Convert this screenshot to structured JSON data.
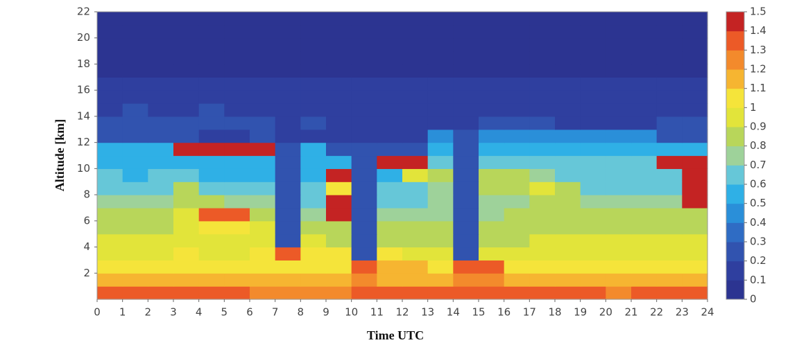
{
  "chart_data": {
    "type": "heatmap",
    "x_label": "Time UTC",
    "y_label": "Altitude [km]",
    "xlim": [
      0,
      24
    ],
    "ylim": [
      0,
      22
    ],
    "xticks": [
      0,
      1,
      2,
      3,
      4,
      5,
      6,
      7,
      8,
      9,
      10,
      11,
      12,
      13,
      14,
      15,
      16,
      17,
      18,
      19,
      20,
      21,
      22,
      23,
      24
    ],
    "yticks": [
      2,
      4,
      6,
      8,
      10,
      12,
      14,
      16,
      18,
      20,
      22
    ],
    "z": [
      [
        1.35,
        1.35,
        1.3,
        1.3,
        1.3,
        1.3,
        1.25,
        1.25,
        1.25,
        1.25,
        1.35,
        1.35,
        1.3,
        1.3,
        1.35,
        1.35,
        1.3,
        1.3,
        1.3,
        1.3,
        1.25,
        1.3,
        1.3,
        1.3
      ],
      [
        1.2,
        1.15,
        1.15,
        1.15,
        1.15,
        1.15,
        1.1,
        1.1,
        1.15,
        1.15,
        1.25,
        1.2,
        1.2,
        1.2,
        1.25,
        1.25,
        1.2,
        1.15,
        1.15,
        1.15,
        1.1,
        1.1,
        1.1,
        1.1
      ],
      [
        1.05,
        1.05,
        1.05,
        1.05,
        1.0,
        1.0,
        1.05,
        1.05,
        1.05,
        1.05,
        1.35,
        1.1,
        1.1,
        1.05,
        1.35,
        1.35,
        1.05,
        1.0,
        1.0,
        1.0,
        1.0,
        1.0,
        1.05,
        1.05
      ],
      [
        0.95,
        0.95,
        0.95,
        1.0,
        0.95,
        0.95,
        1.05,
        1.3,
        1.05,
        1.05,
        0.25,
        1.0,
        0.95,
        0.95,
        0.25,
        0.95,
        0.95,
        0.95,
        0.95,
        0.95,
        0.95,
        0.95,
        0.95,
        0.95
      ],
      [
        0.9,
        0.9,
        0.9,
        0.95,
        0.9,
        0.9,
        0.9,
        0.2,
        0.9,
        0.85,
        0.25,
        0.85,
        0.85,
        0.85,
        0.25,
        0.85,
        0.85,
        0.95,
        0.95,
        0.95,
        0.95,
        0.95,
        0.9,
        0.9
      ],
      [
        0.8,
        0.85,
        0.85,
        0.95,
        1.05,
        1.05,
        0.95,
        0.2,
        0.85,
        0.8,
        0.25,
        0.8,
        0.8,
        0.8,
        0.25,
        0.8,
        0.8,
        0.85,
        0.85,
        0.85,
        0.85,
        0.85,
        0.85,
        0.85
      ],
      [
        0.8,
        0.8,
        0.85,
        0.95,
        1.35,
        1.3,
        0.8,
        0.2,
        0.75,
        1.45,
        0.25,
        0.75,
        0.75,
        0.75,
        0.25,
        0.75,
        0.8,
        0.8,
        0.8,
        0.8,
        0.8,
        0.8,
        0.8,
        0.8
      ],
      [
        0.75,
        0.75,
        0.75,
        0.8,
        0.8,
        0.75,
        0.75,
        0.2,
        0.7,
        1.45,
        0.25,
        0.7,
        0.7,
        0.75,
        0.25,
        0.75,
        0.75,
        0.8,
        0.8,
        0.75,
        0.75,
        0.75,
        0.75,
        1.45
      ],
      [
        0.7,
        0.7,
        0.7,
        0.85,
        0.7,
        0.7,
        0.7,
        0.2,
        0.65,
        1.0,
        0.25,
        0.65,
        0.65,
        0.75,
        0.25,
        0.85,
        0.85,
        0.9,
        0.8,
        0.7,
        0.7,
        0.7,
        0.7,
        1.45
      ],
      [
        0.65,
        0.6,
        0.65,
        0.7,
        0.6,
        0.6,
        0.6,
        0.2,
        0.6,
        1.45,
        0.25,
        0.6,
        0.95,
        0.85,
        0.25,
        0.85,
        0.8,
        0.75,
        0.7,
        0.7,
        0.7,
        0.7,
        0.7,
        1.45
      ],
      [
        0.55,
        0.55,
        0.55,
        0.5,
        0.5,
        0.55,
        0.55,
        0.2,
        0.55,
        0.5,
        0.25,
        1.45,
        1.45,
        0.65,
        0.25,
        0.7,
        0.7,
        0.7,
        0.65,
        0.65,
        0.65,
        0.65,
        1.45,
        1.45
      ],
      [
        0.55,
        0.55,
        0.5,
        1.45,
        1.45,
        1.45,
        1.45,
        0.2,
        0.5,
        0.3,
        0.25,
        0.3,
        0.3,
        0.55,
        0.25,
        0.55,
        0.6,
        0.6,
        0.6,
        0.6,
        0.6,
        0.6,
        0.6,
        0.55
      ],
      [
        0.2,
        0.2,
        0.2,
        0.2,
        0.15,
        0.15,
        0.2,
        0.15,
        0.15,
        0.15,
        0.15,
        0.15,
        0.15,
        0.45,
        0.25,
        0.45,
        0.45,
        0.45,
        0.45,
        0.45,
        0.4,
        0.45,
        0.25,
        0.2
      ],
      [
        0.2,
        0.2,
        0.2,
        0.2,
        0.2,
        0.2,
        0.2,
        0.15,
        0.2,
        0.15,
        0.15,
        0.15,
        0.15,
        0.15,
        0.15,
        0.2,
        0.2,
        0.2,
        0.15,
        0.15,
        0.15,
        0.15,
        0.2,
        0.2
      ],
      [
        0.15,
        0.2,
        0.15,
        0.15,
        0.2,
        0.15,
        0.15,
        0.15,
        0.15,
        0.15,
        0.15,
        0.15,
        0.1,
        0.1,
        0.1,
        0.15,
        0.15,
        0.15,
        0.1,
        0.1,
        0.1,
        0.15,
        0.15,
        0.15
      ],
      [
        0.15,
        0.15,
        0.15,
        0.15,
        0.15,
        0.15,
        0.15,
        0.1,
        0.1,
        0.1,
        0.1,
        0.1,
        0.1,
        0.1,
        0.1,
        0.1,
        0.1,
        0.1,
        0.1,
        0.1,
        0.1,
        0.1,
        0.15,
        0.15
      ],
      [
        0.15,
        0.1,
        0.15,
        0.1,
        0.1,
        0.1,
        0.1,
        0.1,
        0.1,
        0.1,
        0.1,
        0.1,
        0.1,
        0.1,
        0.1,
        0.1,
        0.1,
        0.1,
        0.1,
        0.1,
        0.1,
        0.1,
        0.1,
        0.1
      ],
      [
        0.05,
        0.05,
        0.05,
        0.05,
        0.05,
        0.05,
        0.05,
        0.05,
        0.05,
        0.05,
        0.05,
        0.05,
        0.05,
        0.05,
        0.05,
        0.05,
        0.05,
        0.05,
        0.05,
        0.05,
        0.05,
        0.05,
        0.05,
        0.05
      ],
      [
        0.05,
        0.05,
        0.05,
        0.05,
        0.05,
        0.05,
        0.05,
        0.05,
        0.05,
        0.05,
        0.05,
        0.05,
        0.05,
        0.05,
        0.05,
        0.05,
        0.05,
        0.05,
        0.05,
        0.05,
        0.05,
        0.05,
        0.05,
        0.05
      ],
      [
        0.05,
        0.05,
        0.05,
        0.05,
        0.05,
        0.05,
        0.05,
        0.05,
        0.05,
        0.05,
        0.05,
        0.05,
        0.05,
        0.05,
        0.05,
        0.05,
        0.05,
        0.05,
        0.05,
        0.05,
        0.05,
        0.05,
        0.05,
        0.05
      ],
      [
        0.05,
        0.05,
        0.05,
        0.05,
        0.05,
        0.05,
        0.05,
        0.05,
        0.05,
        0.05,
        0.05,
        0.05,
        0.05,
        0.05,
        0.05,
        0.05,
        0.05,
        0.05,
        0.05,
        0.05,
        0.05,
        0.05,
        0.05,
        0.05
      ],
      [
        0.05,
        0.05,
        0.05,
        0.05,
        0.05,
        0.05,
        0.05,
        0.05,
        0.05,
        0.05,
        0.05,
        0.05,
        0.05,
        0.05,
        0.05,
        0.05,
        0.05,
        0.05,
        0.05,
        0.05,
        0.05,
        0.05,
        0.05,
        0.05
      ]
    ],
    "colorbar": {
      "lim": [
        0,
        1.5
      ],
      "ticks": [
        0,
        0.1,
        0.2,
        0.3,
        0.4,
        0.5,
        0.6,
        0.7,
        0.8,
        0.9,
        1,
        1.1,
        1.2,
        1.3,
        1.4,
        1.5
      ],
      "colors": [
        "#2c3491",
        "#2f3f9f",
        "#3153af",
        "#2f6cc4",
        "#2a8fd9",
        "#2fb0e6",
        "#66c7d8",
        "#9ed29a",
        "#b8d65a",
        "#e2e43a",
        "#f5e43a",
        "#f6b531",
        "#f38a2c",
        "#ec5a27",
        "#c42323"
      ]
    }
  }
}
